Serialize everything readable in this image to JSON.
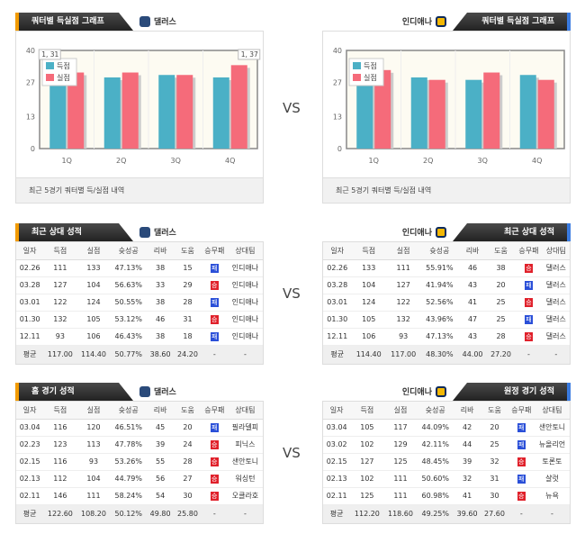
{
  "vs": "VS",
  "colors": {
    "scored": "#4bb0c6",
    "allowed": "#f56b7a",
    "win": "#e0212b",
    "loss": "#2a4fd8"
  },
  "chart_data": [
    {
      "type": "bar",
      "title": "쿼터별 득실점 그래프",
      "team": "댈러스",
      "categories": [
        "1Q",
        "2Q",
        "3Q",
        "4Q"
      ],
      "yticks": [
        "0",
        "13",
        "27",
        "40"
      ],
      "ylim": [
        0,
        40
      ],
      "series": [
        {
          "name": "득점",
          "values": [
            29,
            29,
            30,
            29
          ]
        },
        {
          "name": "실점",
          "values": [
            31,
            31,
            30,
            34
          ]
        }
      ],
      "tooltips": [
        "1, 31",
        "1, 37"
      ],
      "legend": "top-left",
      "footer": "최근 5경기 쿼터별 득/실점 내역"
    },
    {
      "type": "bar",
      "title": "쿼터별 득실점 그래프",
      "team": "인디애나",
      "categories": [
        "1Q",
        "2Q",
        "3Q",
        "4Q"
      ],
      "yticks": [
        "0",
        "13",
        "27",
        "40"
      ],
      "ylim": [
        0,
        40
      ],
      "series": [
        {
          "name": "득점",
          "values": [
            28,
            29,
            28,
            30
          ]
        },
        {
          "name": "실점",
          "values": [
            32,
            28,
            31,
            28
          ]
        }
      ],
      "legend": "top-left",
      "footer": "최근 5경기 쿼터별 득/실점 내역"
    }
  ],
  "columns": [
    "일자",
    "득점",
    "실점",
    "슛성공",
    "리바",
    "도움",
    "승무패",
    "상대팀"
  ],
  "tables": [
    {
      "title": "최근 상대 성적",
      "team": "댈러스",
      "rows": [
        [
          "02.26",
          "111",
          "133",
          "47.13%",
          "38",
          "15",
          "패",
          "인디애나"
        ],
        [
          "03.28",
          "127",
          "104",
          "56.63%",
          "33",
          "29",
          "승",
          "인디애나"
        ],
        [
          "03.01",
          "122",
          "124",
          "50.55%",
          "38",
          "28",
          "패",
          "인디애나"
        ],
        [
          "01.30",
          "132",
          "105",
          "53.12%",
          "46",
          "31",
          "승",
          "인디애나"
        ],
        [
          "12.11",
          "93",
          "106",
          "46.43%",
          "38",
          "18",
          "패",
          "인디애나"
        ]
      ],
      "avg": [
        "평균",
        "117.00",
        "114.40",
        "50.77%",
        "38.60",
        "24.20",
        "-",
        "-"
      ]
    },
    {
      "title": "최근 상대 성적",
      "team": "인디애나",
      "rows": [
        [
          "02.26",
          "133",
          "111",
          "55.91%",
          "46",
          "38",
          "승",
          "댈러스"
        ],
        [
          "03.28",
          "104",
          "127",
          "41.94%",
          "43",
          "20",
          "패",
          "댈러스"
        ],
        [
          "03.01",
          "124",
          "122",
          "52.56%",
          "41",
          "25",
          "승",
          "댈러스"
        ],
        [
          "01.30",
          "105",
          "132",
          "43.96%",
          "47",
          "25",
          "패",
          "댈러스"
        ],
        [
          "12.11",
          "106",
          "93",
          "47.13%",
          "43",
          "28",
          "승",
          "댈러스"
        ]
      ],
      "avg": [
        "평균",
        "114.40",
        "117.00",
        "48.30%",
        "44.00",
        "27.20",
        "-",
        "-"
      ]
    },
    {
      "title": "홈 경기 성적",
      "team": "댈러스",
      "rows": [
        [
          "03.04",
          "116",
          "120",
          "46.51%",
          "45",
          "20",
          "패",
          "필라델피"
        ],
        [
          "02.23",
          "123",
          "113",
          "47.78%",
          "39",
          "24",
          "승",
          "피닉스"
        ],
        [
          "02.15",
          "116",
          "93",
          "53.26%",
          "55",
          "28",
          "승",
          "샌안토니"
        ],
        [
          "02.13",
          "112",
          "104",
          "44.79%",
          "56",
          "27",
          "승",
          "워싱턴"
        ],
        [
          "02.11",
          "146",
          "111",
          "58.24%",
          "54",
          "30",
          "승",
          "오클라호"
        ]
      ],
      "avg": [
        "평균",
        "122.60",
        "108.20",
        "50.12%",
        "49.80",
        "25.80",
        "-",
        "-"
      ]
    },
    {
      "title": "원정 경기 성적",
      "team": "인디애나",
      "rows": [
        [
          "03.04",
          "105",
          "117",
          "44.09%",
          "42",
          "20",
          "패",
          "샌안토니"
        ],
        [
          "03.02",
          "102",
          "129",
          "42.11%",
          "44",
          "25",
          "패",
          "뉴올리언"
        ],
        [
          "02.15",
          "127",
          "125",
          "48.45%",
          "39",
          "32",
          "승",
          "토론토"
        ],
        [
          "02.13",
          "102",
          "111",
          "50.60%",
          "32",
          "31",
          "패",
          "샬럿"
        ],
        [
          "02.11",
          "125",
          "111",
          "60.98%",
          "41",
          "30",
          "승",
          "뉴욕"
        ]
      ],
      "avg": [
        "평균",
        "112.20",
        "118.60",
        "49.25%",
        "39.60",
        "27.60",
        "-",
        "-"
      ]
    }
  ]
}
